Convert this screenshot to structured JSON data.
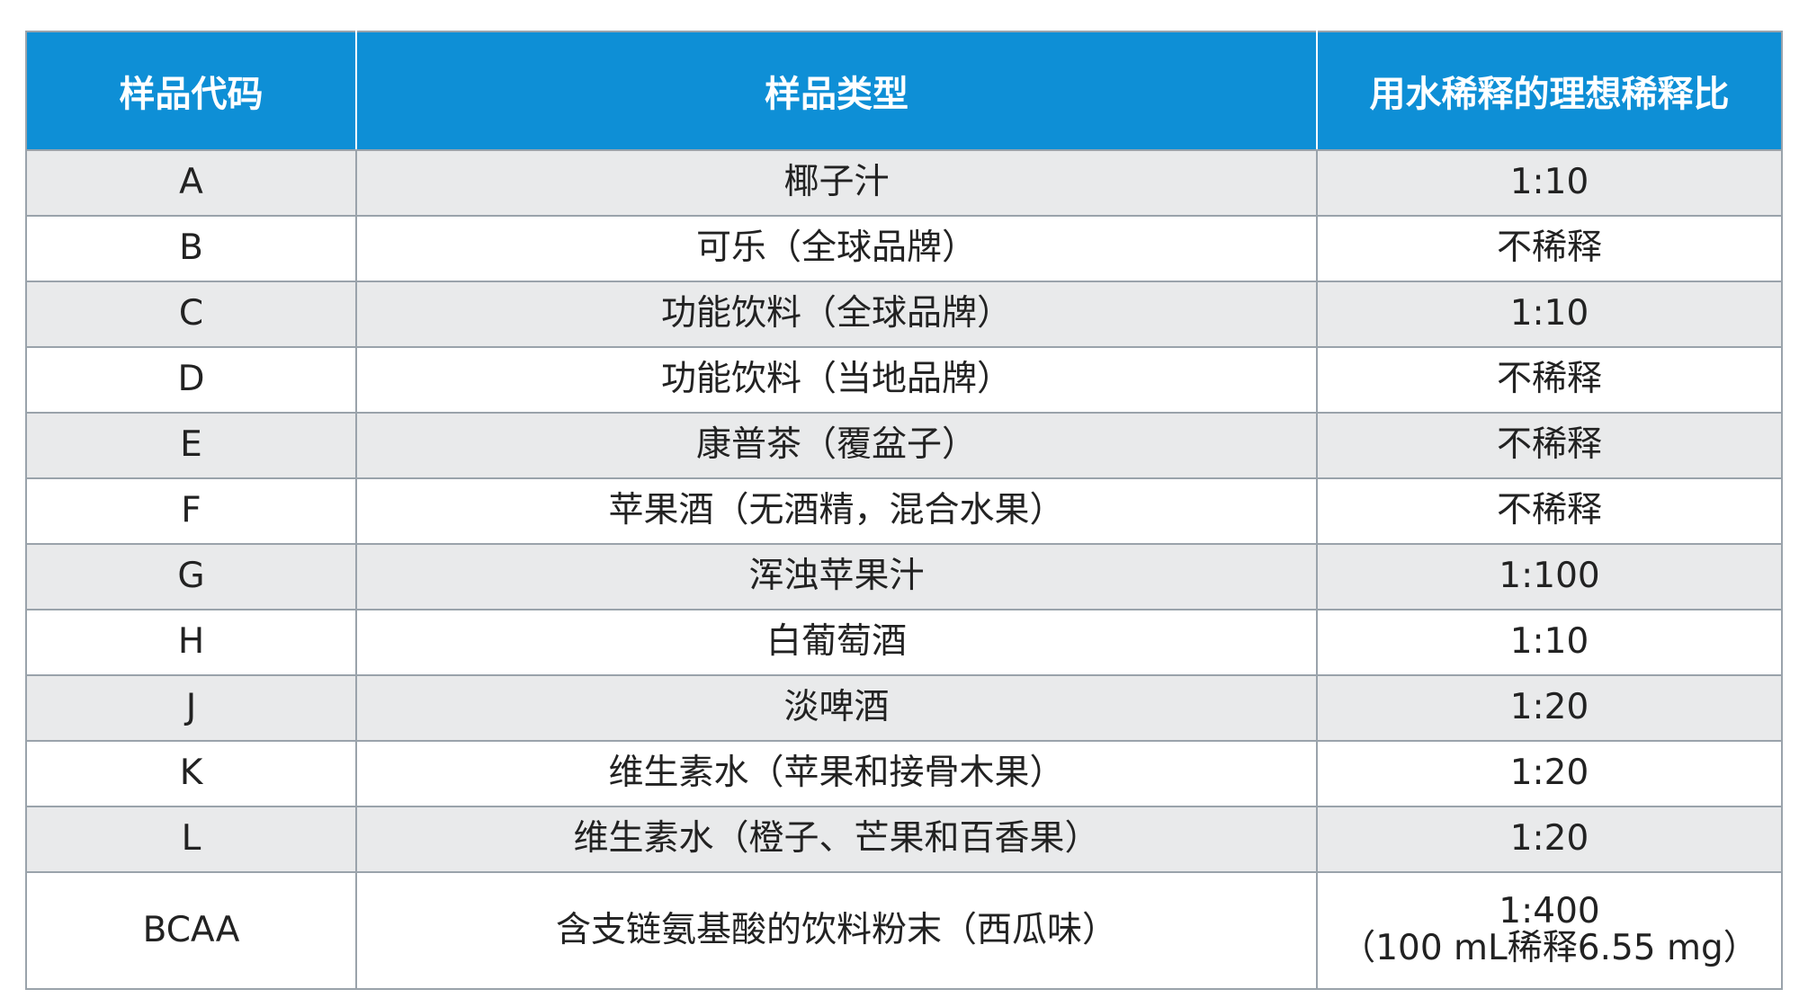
{
  "table": {
    "headers": [
      "样品代码",
      "样品类型",
      "用水稀释的理想稀释比"
    ],
    "rows": [
      {
        "code": "A",
        "type": "椰子汁",
        "ratio": [
          "1:10"
        ]
      },
      {
        "code": "B",
        "type": "可乐（全球品牌）",
        "ratio": [
          "不稀释"
        ]
      },
      {
        "code": "C",
        "type": "功能饮料（全球品牌）",
        "ratio": [
          "1:10"
        ]
      },
      {
        "code": "D",
        "type": "功能饮料（当地品牌）",
        "ratio": [
          "不稀释"
        ]
      },
      {
        "code": "E",
        "type": "康普茶（覆盆子）",
        "ratio": [
          "不稀释"
        ]
      },
      {
        "code": "F",
        "type": "苹果酒（无酒精，混合水果）",
        "ratio": [
          "不稀释"
        ]
      },
      {
        "code": "G",
        "type": "浑浊苹果汁",
        "ratio": [
          "1:100"
        ]
      },
      {
        "code": "H",
        "type": "白葡萄酒",
        "ratio": [
          "1:10"
        ]
      },
      {
        "code": "J",
        "type": "淡啤酒",
        "ratio": [
          "1:20"
        ]
      },
      {
        "code": "K",
        "type": "维生素水（苹果和接骨木果）",
        "ratio": [
          "1:20"
        ]
      },
      {
        "code": "L",
        "type": "维生素水（橙子、芒果和百香果）",
        "ratio": [
          "1:20"
        ]
      },
      {
        "code": "BCAA",
        "type": "含支链氨基酸的饮料粉末（西瓜味）",
        "ratio": [
          "1:400",
          "（100 mL稀释6.55 mg）"
        ]
      }
    ]
  },
  "colors": {
    "header_bg": "#0e8fd6",
    "header_text": "#ffffff",
    "stripe": "#e9eaeb",
    "border": "#9aa3ab"
  }
}
